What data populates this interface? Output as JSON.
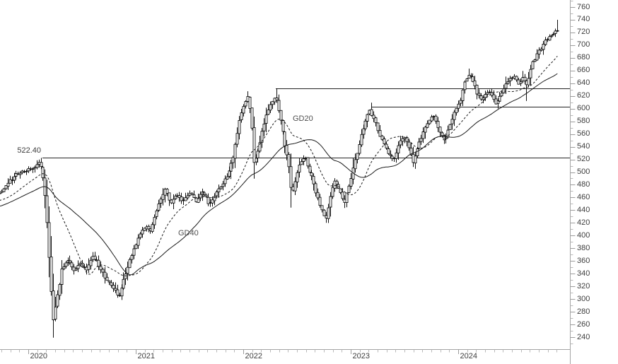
{
  "chart_data": {
    "type": "candlestick",
    "title": "",
    "period": "weekly",
    "y_axis": {
      "min": 240,
      "max": 760,
      "step": 20,
      "minor_min": 230,
      "minor_max": 770,
      "minor_step": 10,
      "tick_labels": [
        "240",
        "260",
        "280",
        "300",
        "320",
        "340",
        "360",
        "380",
        "400",
        "420",
        "440",
        "460",
        "480",
        "500",
        "520",
        "540",
        "560",
        "580",
        "600",
        "620",
        "640",
        "660",
        "680",
        "700",
        "720",
        "740",
        "760"
      ]
    },
    "x_axis": {
      "year_labels": [
        "2020",
        "2021",
        "2022",
        "2023",
        "2024"
      ],
      "t_start": 2019.74,
      "t_end": 2024.92
    },
    "indicators": [
      {
        "name": "GD20",
        "type": "sma",
        "period": 20,
        "style": "dashed"
      },
      {
        "name": "GD40",
        "type": "sma",
        "period": 40,
        "style": "solid"
      }
    ],
    "horizontal_lines": [
      {
        "label": "522.40",
        "value": 522.4,
        "t_start": 2020.13
      },
      {
        "label": "",
        "value": 632,
        "t_start": 2022.3
      },
      {
        "label": "",
        "value": 603,
        "t_start": 2023.2
      }
    ],
    "price_close_anchors": [
      [
        2019.0,
        425
      ],
      [
        2019.2,
        440
      ],
      [
        2019.4,
        452
      ],
      [
        2019.55,
        450
      ],
      [
        2019.65,
        460
      ],
      [
        2019.74,
        468
      ],
      [
        2019.8,
        483
      ],
      [
        2019.88,
        495
      ],
      [
        2019.96,
        503
      ],
      [
        2020.02,
        505
      ],
      [
        2020.08,
        512
      ],
      [
        2020.11,
        516
      ],
      [
        2020.14,
        488
      ],
      [
        2020.17,
        430
      ],
      [
        2020.2,
        340
      ],
      [
        2020.23,
        268
      ],
      [
        2020.27,
        306
      ],
      [
        2020.31,
        348
      ],
      [
        2020.37,
        362
      ],
      [
        2020.43,
        342
      ],
      [
        2020.48,
        356
      ],
      [
        2020.54,
        346
      ],
      [
        2020.6,
        368
      ],
      [
        2020.66,
        352
      ],
      [
        2020.72,
        332
      ],
      [
        2020.78,
        318
      ],
      [
        2020.84,
        304
      ],
      [
        2020.89,
        332
      ],
      [
        2020.95,
        365
      ],
      [
        2021.02,
        396
      ],
      [
        2021.08,
        414
      ],
      [
        2021.13,
        406
      ],
      [
        2021.19,
        440
      ],
      [
        2021.27,
        476
      ],
      [
        2021.32,
        450
      ],
      [
        2021.38,
        466
      ],
      [
        2021.44,
        453
      ],
      [
        2021.5,
        468
      ],
      [
        2021.56,
        452
      ],
      [
        2021.62,
        472
      ],
      [
        2021.68,
        450
      ],
      [
        2021.74,
        464
      ],
      [
        2021.8,
        480
      ],
      [
        2021.86,
        498
      ],
      [
        2021.91,
        528
      ],
      [
        2021.96,
        580
      ],
      [
        2022.0,
        605
      ],
      [
        2022.04,
        618
      ],
      [
        2022.07,
        590
      ],
      [
        2022.1,
        506
      ],
      [
        2022.13,
        532
      ],
      [
        2022.17,
        560
      ],
      [
        2022.21,
        590
      ],
      [
        2022.26,
        612
      ],
      [
        2022.3,
        618
      ],
      [
        2022.34,
        588
      ],
      [
        2022.38,
        548
      ],
      [
        2022.42,
        512
      ],
      [
        2022.45,
        465
      ],
      [
        2022.49,
        492
      ],
      [
        2022.53,
        515
      ],
      [
        2022.57,
        525
      ],
      [
        2022.61,
        505
      ],
      [
        2022.66,
        478
      ],
      [
        2022.7,
        452
      ],
      [
        2022.74,
        435
      ],
      [
        2022.77,
        428
      ],
      [
        2022.81,
        465
      ],
      [
        2022.85,
        488
      ],
      [
        2022.9,
        468
      ],
      [
        2022.94,
        452
      ],
      [
        2022.98,
        478
      ],
      [
        2023.03,
        512
      ],
      [
        2023.08,
        548
      ],
      [
        2023.13,
        580
      ],
      [
        2023.17,
        596
      ],
      [
        2023.21,
        586
      ],
      [
        2023.26,
        562
      ],
      [
        2023.3,
        545
      ],
      [
        2023.35,
        530
      ],
      [
        2023.4,
        518
      ],
      [
        2023.45,
        548
      ],
      [
        2023.5,
        556
      ],
      [
        2023.54,
        538
      ],
      [
        2023.58,
        515
      ],
      [
        2023.63,
        545
      ],
      [
        2023.68,
        565
      ],
      [
        2023.72,
        580
      ],
      [
        2023.77,
        588
      ],
      [
        2023.82,
        564
      ],
      [
        2023.87,
        548
      ],
      [
        2023.92,
        574
      ],
      [
        2023.97,
        596
      ],
      [
        2024.02,
        614
      ],
      [
        2024.06,
        645
      ],
      [
        2024.1,
        655
      ],
      [
        2024.14,
        640
      ],
      [
        2024.18,
        622
      ],
      [
        2024.22,
        612
      ],
      [
        2024.27,
        628
      ],
      [
        2024.31,
        620
      ],
      [
        2024.35,
        608
      ],
      [
        2024.4,
        622
      ],
      [
        2024.44,
        636
      ],
      [
        2024.48,
        645
      ],
      [
        2024.52,
        652
      ],
      [
        2024.56,
        640
      ],
      [
        2024.6,
        650
      ],
      [
        2024.64,
        636
      ],
      [
        2024.68,
        668
      ],
      [
        2024.72,
        682
      ],
      [
        2024.76,
        694
      ],
      [
        2024.8,
        704
      ],
      [
        2024.84,
        712
      ],
      [
        2024.88,
        718
      ],
      [
        2024.92,
        724
      ]
    ],
    "key_bars": [
      {
        "t": 2020.11,
        "high": 522.4
      },
      {
        "t": 2020.23,
        "low": 257
      },
      {
        "t": 2022.3,
        "high": 632
      },
      {
        "t": 2022.45,
        "low": 444
      },
      {
        "t": 2022.77,
        "low": 420
      },
      {
        "t": 2023.2,
        "high": 603
      },
      {
        "t": 2023.58,
        "low": 508
      },
      {
        "t": 2024.1,
        "high": 663
      },
      {
        "t": 2024.37,
        "low": 600
      },
      {
        "t": 2024.64,
        "low": 612
      },
      {
        "t": 2024.92,
        "high": 740
      }
    ],
    "render_seed": 20240512
  },
  "colors": {
    "background": "#ffffff",
    "price": "#111111",
    "candle_fill": "#ffffff",
    "indicator": "#1a1a1a",
    "level_line": "#222222",
    "axis_line": "#a5a5a5",
    "tick_minor": "#b8b8b8",
    "tick_major": "#9c9c9c",
    "label_text": "#3d3d3d"
  }
}
